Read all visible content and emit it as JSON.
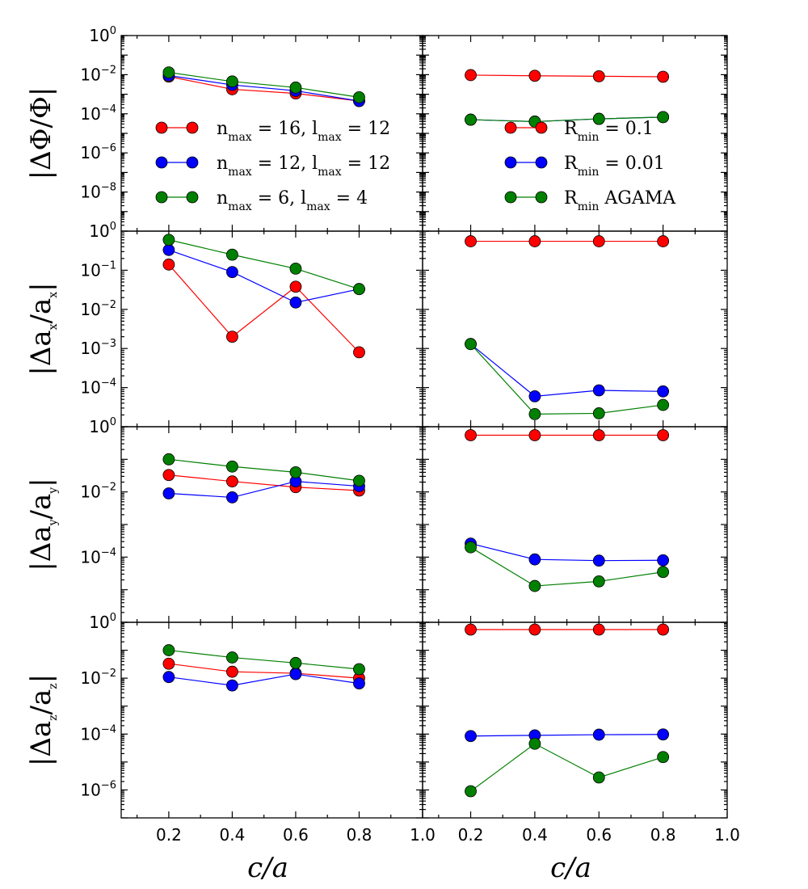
{
  "chart_data": [
    {
      "type": "line",
      "row": 0,
      "col": 0,
      "ylabel": "|ΔΦ/Φ|",
      "yscale": "log",
      "ylim": [
        1e-10,
        1
      ],
      "ytick_exponents": [
        0,
        -2,
        -4,
        -6,
        -8
      ],
      "xlim": [
        0.05,
        1.0
      ],
      "x": [
        0.2,
        0.4,
        0.6,
        0.8
      ],
      "legend": "left",
      "series": [
        {
          "name": "n_max = 16, l_max = 12",
          "color": "#ff0000",
          "values": [
            0.008,
            0.0018,
            0.0011,
            0.00045
          ]
        },
        {
          "name": "n_max = 12, l_max = 12",
          "color": "#0000ff",
          "values": [
            0.009,
            0.003,
            0.0015,
            0.00045
          ]
        },
        {
          "name": "n_max = 6, l_max = 4",
          "color": "#008000",
          "values": [
            0.013,
            0.0045,
            0.0022,
            0.0007
          ]
        }
      ]
    },
    {
      "type": "line",
      "row": 0,
      "col": 1,
      "ylabel": "",
      "yscale": "log",
      "ylim": [
        1e-10,
        1
      ],
      "ytick_exponents": [
        0,
        -2,
        -4,
        -6,
        -8
      ],
      "xlim": [
        0.05,
        1.0
      ],
      "x": [
        0.2,
        0.4,
        0.6,
        0.8
      ],
      "legend": "right",
      "series": [
        {
          "name": "R_min = 0.1",
          "color": "#ff0000",
          "values": [
            0.0095,
            0.0088,
            0.0083,
            0.0078
          ]
        },
        {
          "name": "R_min = 0.01",
          "color": "#0000ff",
          "values": [
            5e-05,
            4e-05,
            5.5e-05,
            6.8e-05
          ]
        },
        {
          "name": "R_min AGAMA",
          "color": "#008000",
          "values": [
            5e-05,
            4e-05,
            5.5e-05,
            6.8e-05
          ]
        }
      ]
    },
    {
      "type": "line",
      "row": 1,
      "col": 0,
      "ylabel": "|Δa_x/a_x|",
      "yscale": "log",
      "ylim": [
        1e-05,
        1
      ],
      "ytick_exponents": [
        0,
        -1,
        -2,
        -3,
        -4
      ],
      "xlim": [
        0.05,
        1.0
      ],
      "x": [
        0.2,
        0.4,
        0.6,
        0.8
      ],
      "series": [
        {
          "name": "n_max = 16, l_max = 12",
          "color": "#ff0000",
          "values": [
            0.14,
            0.002,
            0.038,
            0.0008
          ]
        },
        {
          "name": "n_max = 12, l_max = 12",
          "color": "#0000ff",
          "values": [
            0.33,
            0.09,
            0.015,
            0.033
          ]
        },
        {
          "name": "n_max = 6, l_max = 4",
          "color": "#008000",
          "values": [
            0.6,
            0.25,
            0.11,
            0.033
          ]
        }
      ]
    },
    {
      "type": "line",
      "row": 1,
      "col": 1,
      "ylabel": "",
      "yscale": "log",
      "ylim": [
        1e-05,
        1
      ],
      "ytick_exponents": [
        0,
        -1,
        -2,
        -3,
        -4
      ],
      "xlim": [
        0.05,
        1.0
      ],
      "x": [
        0.2,
        0.4,
        0.6,
        0.8
      ],
      "series": [
        {
          "name": "R_min = 0.1",
          "color": "#ff0000",
          "values": [
            0.55,
            0.55,
            0.55,
            0.55
          ]
        },
        {
          "name": "R_min = 0.01",
          "color": "#0000ff",
          "values": [
            0.0013,
            6e-05,
            8.5e-05,
            8e-05
          ]
        },
        {
          "name": "R_min AGAMA",
          "color": "#008000",
          "values": [
            0.0013,
            2.1e-05,
            2.2e-05,
            3.6e-05
          ]
        }
      ]
    },
    {
      "type": "line",
      "row": 2,
      "col": 0,
      "ylabel": "|Δa_y/a_y|",
      "yscale": "log",
      "ylim": [
        1e-06,
        1
      ],
      "ytick_exponents": [
        0,
        -2,
        -4
      ],
      "xlim": [
        0.05,
        1.0
      ],
      "x": [
        0.2,
        0.4,
        0.6,
        0.8
      ],
      "series": [
        {
          "name": "n_max = 16, l_max = 12",
          "color": "#ff0000",
          "values": [
            0.033,
            0.021,
            0.014,
            0.011
          ]
        },
        {
          "name": "n_max = 12, l_max = 12",
          "color": "#0000ff",
          "values": [
            0.009,
            0.0068,
            0.021,
            0.015
          ]
        },
        {
          "name": "n_max = 6, l_max = 4",
          "color": "#008000",
          "values": [
            0.1,
            0.06,
            0.04,
            0.022
          ]
        }
      ]
    },
    {
      "type": "line",
      "row": 2,
      "col": 1,
      "ylabel": "",
      "yscale": "log",
      "ylim": [
        1e-06,
        1
      ],
      "ytick_exponents": [
        0,
        -2,
        -4
      ],
      "xlim": [
        0.05,
        1.0
      ],
      "x": [
        0.2,
        0.4,
        0.6,
        0.8
      ],
      "series": [
        {
          "name": "R_min = 0.1",
          "color": "#ff0000",
          "values": [
            0.55,
            0.55,
            0.55,
            0.55
          ]
        },
        {
          "name": "R_min = 0.01",
          "color": "#0000ff",
          "values": [
            0.00026,
            8.5e-05,
            7.8e-05,
            8e-05
          ]
        },
        {
          "name": "R_min AGAMA",
          "color": "#008000",
          "values": [
            0.0002,
            1.3e-05,
            1.8e-05,
            3.5e-05
          ]
        }
      ]
    },
    {
      "type": "line",
      "row": 3,
      "col": 0,
      "ylabel": "|Δa_z/a_z|",
      "yscale": "log",
      "ylim": [
        1e-07,
        1
      ],
      "ytick_exponents": [
        0,
        -2,
        -4,
        -6
      ],
      "xlim": [
        0.05,
        1.0
      ],
      "x": [
        0.2,
        0.4,
        0.6,
        0.8
      ],
      "xticks": [
        "0.2",
        "0.4",
        "0.6",
        "0.8",
        "1.0"
      ],
      "xlabel": "c/a",
      "series": [
        {
          "name": "n_max = 16, l_max = 12",
          "color": "#ff0000",
          "values": [
            0.033,
            0.017,
            0.015,
            0.01
          ]
        },
        {
          "name": "n_max = 12, l_max = 12",
          "color": "#0000ff",
          "values": [
            0.011,
            0.0055,
            0.014,
            0.0065
          ]
        },
        {
          "name": "n_max = 6, l_max = 4",
          "color": "#008000",
          "values": [
            0.1,
            0.055,
            0.035,
            0.021
          ]
        }
      ]
    },
    {
      "type": "line",
      "row": 3,
      "col": 1,
      "ylabel": "",
      "yscale": "log",
      "ylim": [
        1e-07,
        1
      ],
      "ytick_exponents": [
        0,
        -2,
        -4,
        -6
      ],
      "xlim": [
        0.05,
        1.0
      ],
      "x": [
        0.2,
        0.4,
        0.6,
        0.8
      ],
      "xticks": [
        "0.2",
        "0.4",
        "0.6",
        "0.8",
        "1.0"
      ],
      "xlabel": "c/a",
      "series": [
        {
          "name": "R_min = 0.1",
          "color": "#ff0000",
          "values": [
            0.55,
            0.55,
            0.55,
            0.55
          ]
        },
        {
          "name": "R_min = 0.01",
          "color": "#0000ff",
          "values": [
            8.5e-05,
            9e-05,
            9.5e-05,
            9.7e-05
          ]
        },
        {
          "name": "R_min AGAMA",
          "color": "#008000",
          "values": [
            9e-07,
            4.5e-05,
            2.8e-06,
            1.5e-05
          ]
        }
      ]
    }
  ]
}
